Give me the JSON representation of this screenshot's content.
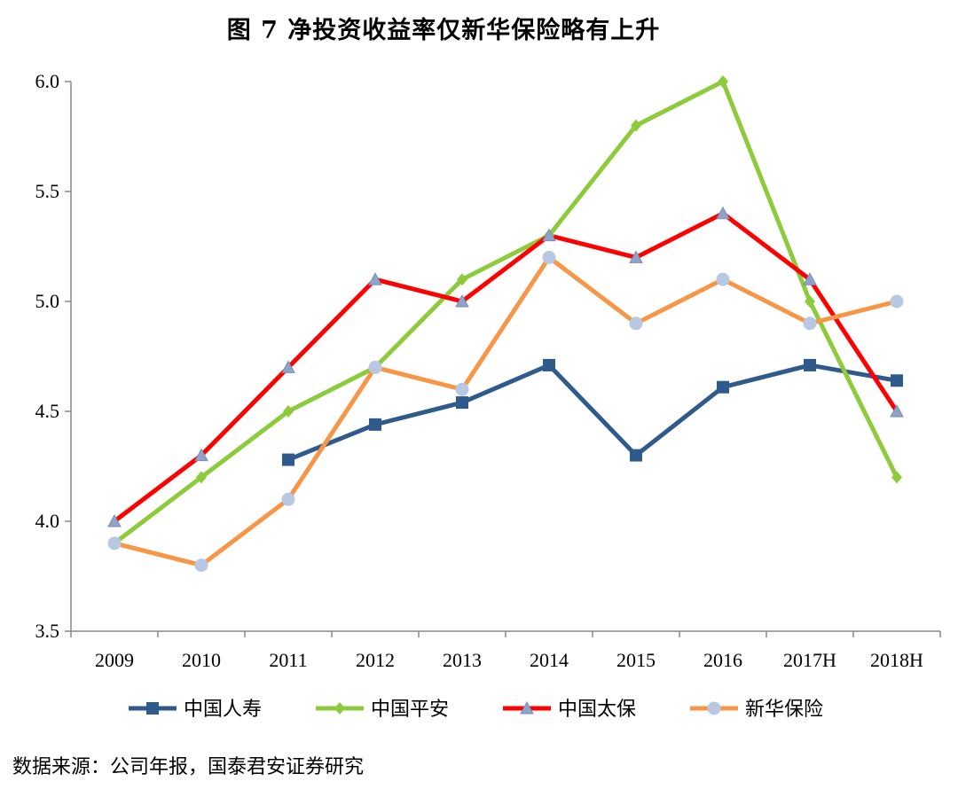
{
  "title": "图 7 净投资收益率仅新华保险略有上升",
  "source": "数据来源：公司年报，国泰君安证券研究",
  "chart_data": {
    "type": "line",
    "categories": [
      "2009",
      "2010",
      "2011",
      "2012",
      "2013",
      "2014",
      "2015",
      "2016",
      "2017H",
      "2018H"
    ],
    "ylim": [
      3.5,
      6.0
    ],
    "yticks": [
      "3.5",
      "4.0",
      "4.5",
      "5.0",
      "5.5",
      "6.0"
    ],
    "grid": false,
    "legend_position": "bottom",
    "series": [
      {
        "name": "中国人寿",
        "color": "#2E5A8C",
        "marker": "square",
        "values": [
          null,
          null,
          4.28,
          4.44,
          4.54,
          4.71,
          4.3,
          4.61,
          4.71,
          4.64
        ]
      },
      {
        "name": "中国平安",
        "color": "#8DCB3C",
        "marker": "diamond",
        "values": [
          3.9,
          4.2,
          4.5,
          4.7,
          5.1,
          5.3,
          5.8,
          6.0,
          5.0,
          4.2
        ]
      },
      {
        "name": "中国太保",
        "color": "#FF0000",
        "marker": "triangle",
        "values": [
          4.0,
          4.3,
          4.7,
          5.1,
          5.0,
          5.3,
          5.2,
          5.4,
          5.1,
          4.5
        ]
      },
      {
        "name": "新华保险",
        "color": "#F79646",
        "marker": "circle",
        "values": [
          3.9,
          3.8,
          4.1,
          4.7,
          4.6,
          5.2,
          4.9,
          5.1,
          4.9,
          5.0
        ]
      }
    ]
  }
}
